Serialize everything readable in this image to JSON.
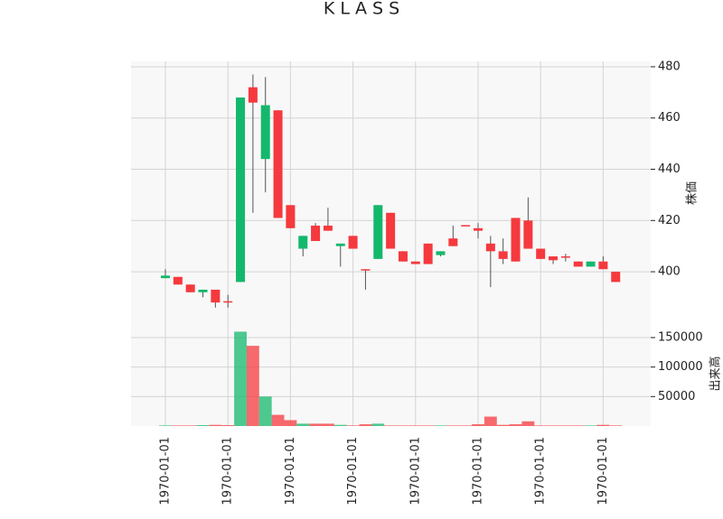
{
  "chart_data": {
    "type": "candlestick",
    "title": "K L A S S",
    "y_label": "株価",
    "volume_label": "出来高",
    "up_color": "#14b86c",
    "down_color": "#f5393e",
    "categories": [
      "1970-01-01",
      null,
      null,
      null,
      null,
      "1970-01-01",
      null,
      null,
      null,
      null,
      "1970-01-01",
      null,
      null,
      null,
      null,
      "1970-01-01",
      null,
      null,
      null,
      null,
      "1970-01-01",
      null,
      null,
      null,
      null,
      "1970-01-01",
      null,
      null,
      null,
      null,
      "1970-01-01",
      null,
      null,
      null,
      null,
      "1970-01-01",
      null
    ],
    "open": [
      397.5,
      398,
      395,
      392,
      393,
      388.5,
      396,
      472,
      444,
      463,
      426,
      409,
      418,
      418,
      410,
      414,
      401,
      405,
      423,
      408,
      404,
      411,
      406.5,
      413,
      418.2,
      417,
      411,
      408,
      421,
      420,
      409,
      406,
      406,
      404,
      402,
      404,
      400
    ],
    "high": [
      401,
      398,
      395,
      393,
      393,
      391,
      468,
      477,
      476,
      463,
      426,
      414,
      419,
      425,
      411,
      414,
      401,
      426,
      423,
      408,
      404,
      411,
      408,
      418,
      418.2,
      419,
      414,
      413,
      421,
      429,
      409,
      406,
      407,
      404,
      404,
      406,
      400
    ],
    "low": [
      397.5,
      395,
      392,
      390,
      386,
      386,
      396,
      423,
      431,
      421,
      417,
      406,
      412,
      416,
      402,
      409,
      393,
      405,
      409,
      404,
      403,
      403,
      406,
      410,
      418,
      413,
      394,
      403,
      404,
      409,
      405,
      403,
      404,
      402,
      402,
      401,
      396
    ],
    "close": [
      398.5,
      395,
      392,
      393,
      388,
      388,
      468,
      466,
      465,
      421,
      417,
      414,
      412,
      416,
      411,
      409,
      400.8,
      426,
      409,
      404,
      403,
      403,
      408,
      410,
      418,
      416,
      408,
      405,
      404,
      409,
      405,
      404.5,
      405.5,
      402,
      404,
      401,
      396
    ],
    "volume": [
      1000,
      1000,
      1000,
      1500,
      2000,
      1500,
      160000,
      136000,
      50000,
      19000,
      10000,
      4000,
      4000,
      4000,
      2000,
      1000,
      3000,
      4000,
      1000,
      1000,
      1000,
      1000,
      1000,
      1000,
      1000,
      3000,
      16000,
      2000,
      3000,
      8000,
      1000,
      1000,
      1000,
      1000,
      1000,
      2000,
      1000
    ],
    "ylim": [
      380.3,
      482.1
    ],
    "yticks": [
      400,
      420,
      440,
      460,
      480
    ],
    "volume_ylim": [
      0,
      176000
    ],
    "volume_ticks": [
      50000,
      100000,
      150000
    ],
    "grid": true
  }
}
